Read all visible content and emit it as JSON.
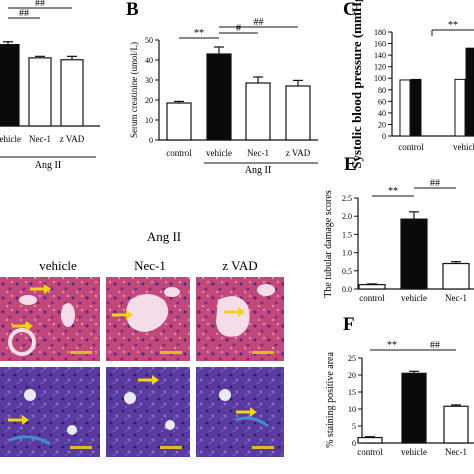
{
  "panel_letters": {
    "B": "B",
    "C": "C",
    "E": "E",
    "F": "F"
  },
  "histology": {
    "group_label": "Ang II",
    "columns": [
      "vehicle",
      "Nec-1",
      "z VAD"
    ]
  },
  "colors": {
    "he_stain": "#c2487a",
    "trichrome_stain": "#5a3a9e",
    "arrow": "#f2d21b",
    "scalebar": "#e3b820",
    "bar_dark": "#0a0a0a",
    "bar_light": "#ffffff"
  },
  "chart_data": [
    {
      "id": "A",
      "type": "bar",
      "categories": [
        "vehicle",
        "Nec-1",
        "z VAD"
      ],
      "values": [
        43,
        36,
        35
      ],
      "errors": [
        1.5,
        0.8,
        1.8
      ],
      "fills": [
        "dark",
        "light",
        "light"
      ],
      "ylim": [
        0,
        56
      ],
      "group_label": "Ang II",
      "group_from": 0,
      "group_to": 2,
      "significance": [
        {
          "from": 0,
          "to": 1,
          "label": "##"
        },
        {
          "from": 0,
          "to": 2,
          "label": "##"
        }
      ]
    },
    {
      "id": "B",
      "type": "bar",
      "categories": [
        "control",
        "vehicle",
        "Nec-1",
        "z VAD"
      ],
      "values": [
        18.5,
        43,
        28.5,
        27
      ],
      "errors": [
        0.8,
        3.5,
        3.0,
        2.8
      ],
      "fills": [
        "light",
        "dark",
        "light",
        "light"
      ],
      "ylabel": "Serum creatinine (umol/L)",
      "ylim": [
        0,
        50
      ],
      "yticks": [
        0,
        10,
        20,
        30,
        40,
        50
      ],
      "group_label": "Ang II",
      "group_from": 1,
      "group_to": 3,
      "significance": [
        {
          "from": 0,
          "to": 1,
          "label": "**"
        },
        {
          "from": 1,
          "to": 2,
          "label": "#"
        },
        {
          "from": 1,
          "to": 3,
          "label": "##"
        }
      ]
    },
    {
      "id": "C",
      "type": "bar",
      "categories": [
        "control",
        "vehicle"
      ],
      "pairs": [
        [
          97,
          98
        ],
        [
          98,
          152
        ]
      ],
      "errors": [
        1.5,
        3
      ],
      "ylabel": "Systolic blood pressure (mmHg)",
      "ylim": [
        0,
        180
      ],
      "yticks": [
        0,
        20,
        40,
        60,
        80,
        100,
        120,
        140,
        160,
        180
      ],
      "significance": [
        {
          "from": 0,
          "to": 1,
          "label": "**"
        }
      ]
    },
    {
      "id": "E",
      "type": "bar",
      "categories": [
        "control",
        "vehicle",
        "Nec-1"
      ],
      "values": [
        0.12,
        1.92,
        0.7
      ],
      "errors": [
        0.02,
        0.2,
        0.05
      ],
      "fills": [
        "light",
        "dark",
        "light"
      ],
      "ylabel": "The tubular damage scores",
      "ylim": [
        0,
        2.5
      ],
      "yticks": [
        0.0,
        0.5,
        1.0,
        1.5,
        2.0,
        2.5
      ],
      "significance": [
        {
          "from": 0,
          "to": 1,
          "label": "**"
        },
        {
          "from": 1,
          "to": 2,
          "label": "##"
        }
      ]
    },
    {
      "id": "F",
      "type": "bar",
      "categories": [
        "control",
        "vehicle",
        "Nec-1"
      ],
      "values": [
        1.6,
        20.5,
        10.8
      ],
      "errors": [
        0.25,
        0.6,
        0.4
      ],
      "fills": [
        "light",
        "dark",
        "light"
      ],
      "ylabel": "% staining positive area",
      "ylim": [
        0,
        25
      ],
      "yticks": [
        0,
        5,
        10,
        15,
        20,
        25
      ],
      "significance": [
        {
          "from": 0,
          "to": 1,
          "label": "**"
        },
        {
          "from": 1,
          "to": 2,
          "label": "##"
        }
      ]
    }
  ]
}
